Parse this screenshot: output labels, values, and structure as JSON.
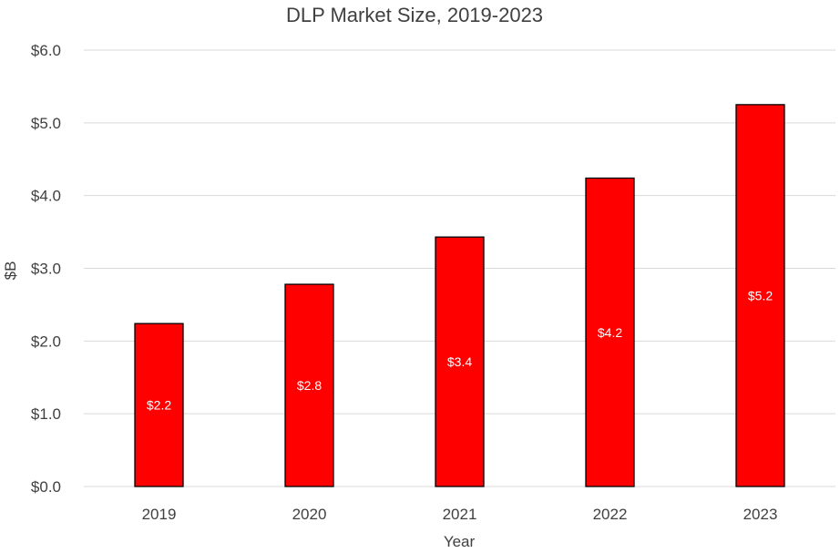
{
  "chart_data": {
    "type": "bar",
    "title": "DLP Market Size, 2019-2023",
    "xlabel": "Year",
    "ylabel": "$B",
    "categories": [
      "2019",
      "2020",
      "2021",
      "2022",
      "2023"
    ],
    "values": [
      2.24,
      2.78,
      3.43,
      4.24,
      5.25
    ],
    "data_labels": [
      "$2.2",
      "$2.8",
      "$3.4",
      "$4.2",
      "$5.2"
    ],
    "ylim": [
      0,
      6
    ],
    "yticks": [
      0,
      1,
      2,
      3,
      4,
      5,
      6
    ],
    "ytick_labels": [
      "$0.0",
      "$1.0",
      "$2.0",
      "$3.0",
      "$4.0",
      "$5.0",
      "$6.0"
    ],
    "grid": true,
    "legend": "none",
    "bar_color": "#ff0000",
    "bar_edge_color": "#000000",
    "data_label_position": "center"
  }
}
